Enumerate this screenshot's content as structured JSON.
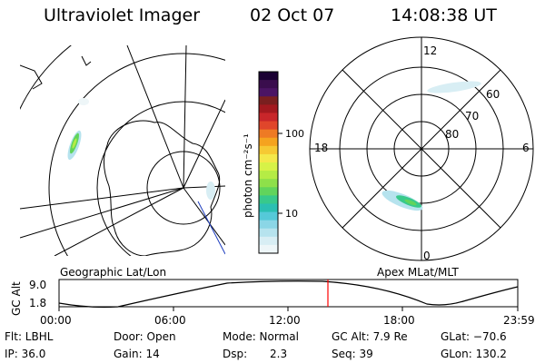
{
  "header": {
    "title": "Ultraviolet Imager",
    "date": "02 Oct 07",
    "time": "14:08:38 UT"
  },
  "colorbar": {
    "unit_label": "photon cm⁻²s⁻¹",
    "ticks": [
      "100",
      "10"
    ],
    "colors": [
      "#1a0033",
      "#3a0d4d",
      "#4b1464",
      "#7a1f1f",
      "#a3191f",
      "#c8262a",
      "#e0462b",
      "#ee7a24",
      "#f5a31f",
      "#f6c933",
      "#f4e84a",
      "#d7f247",
      "#b5ec45",
      "#8ee04a",
      "#61d45c",
      "#38c98b",
      "#2bbfb2",
      "#55c9d8",
      "#8bd6e6",
      "#b6e3ee",
      "#d8eef4",
      "#eef6f8"
    ]
  },
  "left_map": {
    "caption": "Geographic Lat/Lon"
  },
  "right_map": {
    "caption": "Apex MLat/MLT",
    "mlt_labels": {
      "top": "12",
      "bottom": "0",
      "left": "18",
      "right": "6"
    },
    "lat_labels": [
      "60",
      "70",
      "80"
    ]
  },
  "altitude_plot": {
    "ylabel": "GC Alt",
    "yticks": [
      "9.0",
      "1.8"
    ],
    "xticks": [
      "00:00",
      "06:00",
      "12:00",
      "18:00",
      "23:59"
    ],
    "marker_color": "#ff0000",
    "marker_time": "14:08:38"
  },
  "info": {
    "filter": "Flt: LBHL",
    "door": "Door: Open",
    "mode": "Mode: Normal",
    "gc_alt": "GC Alt: 7.9 Re",
    "glat": "GLat: −70.6",
    "ip": "IP: 36.0",
    "gain": "Gain: 14",
    "dsp_label": "Dsp:",
    "dsp_value": "2.3",
    "seq": "Seq: 39",
    "glon": "GLon: 130.2"
  }
}
